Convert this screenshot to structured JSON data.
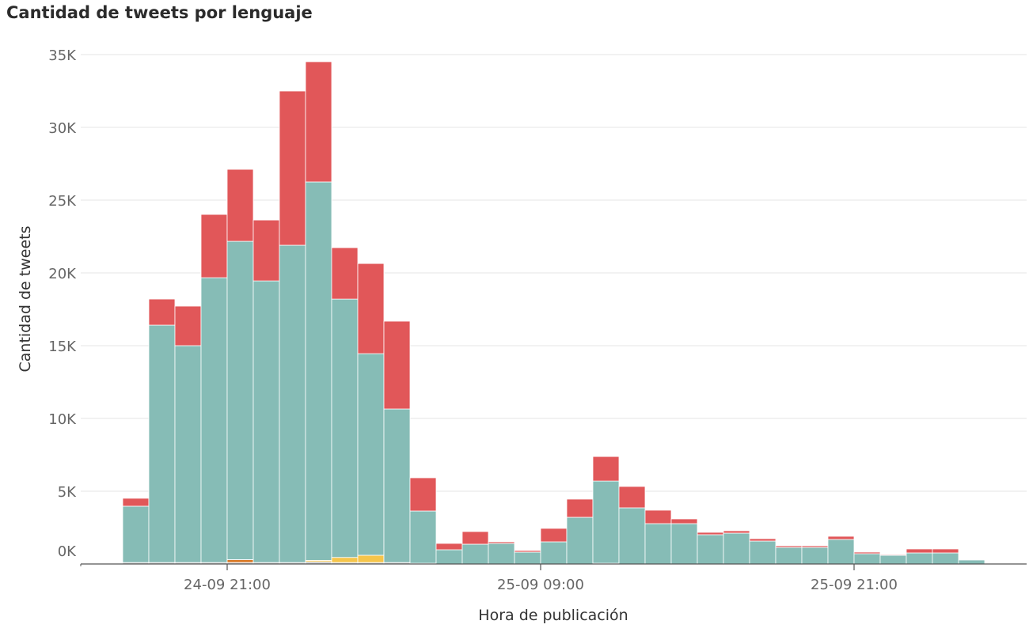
{
  "chart_data": {
    "type": "bar",
    "stacked": true,
    "title": "Cantidad de tweets por lenguaje",
    "xlabel": "Hora de publicación",
    "ylabel": "Cantidad de tweets",
    "ylim": [
      0,
      35000
    ],
    "yticks": [
      0,
      5000,
      10000,
      15000,
      20000,
      25000,
      30000,
      35000
    ],
    "ytick_labels": [
      "0K",
      "5K",
      "10K",
      "15K",
      "20K",
      "25K",
      "30K",
      "35K"
    ],
    "xtick_labels": [
      "24-09 21:00",
      "25-09 09:00",
      "25-09 21:00"
    ],
    "xtick_hour_index": [
      4,
      16,
      28
    ],
    "bin": "hour",
    "start": "24-09 17:00",
    "grid": true,
    "legend": "none",
    "series": [
      {
        "color": "#c9c9c9",
        "values": [
          100,
          100,
          100,
          100,
          100,
          100,
          100,
          150,
          100,
          100,
          100,
          50,
          0,
          0,
          0,
          0,
          0,
          0,
          50,
          0,
          0,
          0,
          0,
          0,
          0,
          0,
          0,
          0,
          0,
          0,
          0,
          0,
          0
        ]
      },
      {
        "color": "#d97b2a",
        "values": [
          0,
          0,
          0,
          0,
          200,
          0,
          0,
          0,
          0,
          0,
          0,
          0,
          0,
          0,
          0,
          0,
          0,
          0,
          0,
          0,
          0,
          0,
          0,
          0,
          0,
          0,
          0,
          0,
          0,
          0,
          0,
          0,
          0
        ]
      },
      {
        "color": "#f5c54b",
        "values": [
          0,
          0,
          0,
          0,
          0,
          0,
          0,
          100,
          350,
          500,
          0,
          0,
          0,
          0,
          0,
          0,
          0,
          0,
          0,
          0,
          0,
          0,
          0,
          0,
          0,
          0,
          0,
          0,
          0,
          0,
          0,
          0,
          0
        ]
      },
      {
        "color": "#86bcb6",
        "values": [
          3870,
          16310,
          14900,
          19570,
          21870,
          19350,
          21800,
          26000,
          17750,
          13850,
          10550,
          3590,
          978,
          1359,
          1413,
          815,
          1522,
          3207,
          5650,
          3859,
          2772,
          2772,
          2011,
          2120,
          1576,
          1141,
          1141,
          1685,
          707,
          598,
          761,
          761,
          272
        ]
      },
      {
        "color": "#e15759",
        "values": [
          544,
          1794,
          2717,
          4348,
          4946,
          4184,
          10598,
          8261,
          3533,
          6195,
          6033,
          2283,
          435,
          869,
          109,
          109,
          924,
          1250,
          1684,
          1467,
          924,
          326,
          163,
          163,
          163,
          109,
          109,
          217,
          108,
          54,
          272,
          272,
          0
        ]
      }
    ]
  }
}
